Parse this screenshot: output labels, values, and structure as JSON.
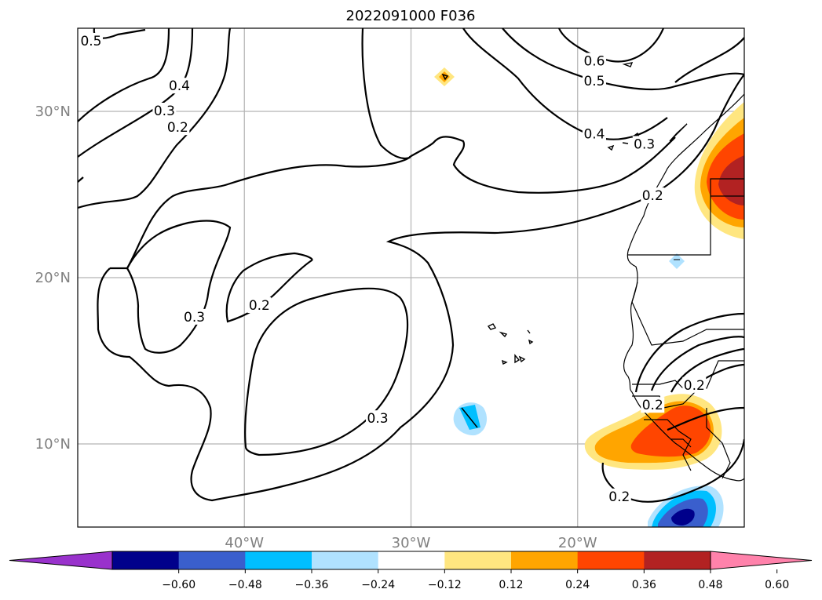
{
  "chart_data": {
    "type": "contour-map",
    "title": "2022091000 F036",
    "lon_range": [
      -50,
      -10
    ],
    "lat_range": [
      5,
      35
    ],
    "x_ticks": [
      {
        "lon": -40,
        "label": "40°W"
      },
      {
        "lon": -30,
        "label": "30°W"
      },
      {
        "lon": -20,
        "label": "20°W"
      }
    ],
    "y_ticks": [
      {
        "lat": 30,
        "label": "30°N"
      },
      {
        "lat": 20,
        "label": "20°N"
      },
      {
        "lat": 10,
        "label": "10°N"
      }
    ],
    "grid": true,
    "contour_labels": [
      {
        "text": "0.5",
        "lon": -49.2,
        "lat": 34.2
      },
      {
        "text": "0.4",
        "lon": -43.9,
        "lat": 31.5
      },
      {
        "text": "0.3",
        "lon": -44.8,
        "lat": 30.0
      },
      {
        "text": "0.2",
        "lon": -44.0,
        "lat": 29.0
      },
      {
        "text": "0.6",
        "lon": -19.0,
        "lat": 33.0
      },
      {
        "text": "0.5",
        "lon": -19.0,
        "lat": 31.8
      },
      {
        "text": "0.4",
        "lon": -19.0,
        "lat": 28.6
      },
      {
        "text": "0.3",
        "lon": -16.0,
        "lat": 28.0
      },
      {
        "text": "0.2",
        "lon": -15.5,
        "lat": 24.9
      },
      {
        "text": "0.3",
        "lon": -43.0,
        "lat": 17.6
      },
      {
        "text": "0.2",
        "lon": -39.1,
        "lat": 18.3
      },
      {
        "text": "0.3",
        "lon": -32.0,
        "lat": 11.5
      },
      {
        "text": "0.2",
        "lon": -17.5,
        "lat": 6.8
      },
      {
        "text": "0.2",
        "lon": -13.0,
        "lat": 13.5
      },
      {
        "text": "0.2",
        "lon": -15.5,
        "lat": 12.3
      }
    ],
    "colorbar": {
      "ticks": [
        "−0.60",
        "−0.48",
        "−0.36",
        "−0.24",
        "−0.12",
        "0.12",
        "0.24",
        "0.36",
        "0.48",
        "0.60"
      ],
      "colors": [
        "#9932cc",
        "#00008b",
        "#3a5fcd",
        "#00bfff",
        "#b0e2ff",
        "#ffffff",
        "#ffe680",
        "#ffa500",
        "#ff4500",
        "#b22222",
        "#ff82ab"
      ]
    }
  }
}
